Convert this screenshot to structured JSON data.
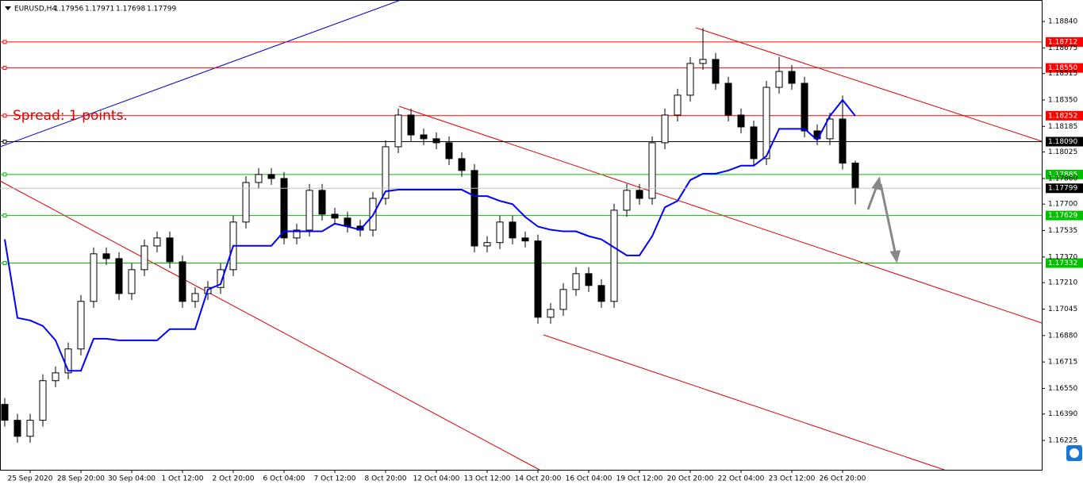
{
  "chart_data": {
    "type": "candlestick",
    "title": "EURUSD,H4",
    "annotation": "Spread: 1 points.",
    "categories": [
      null,
      null,
      "25 Sep 2020",
      null,
      null,
      null,
      "28 Sep 20:00",
      null,
      null,
      null,
      "30 Sep 04:00",
      null,
      null,
      null,
      "1 Oct 12:00",
      null,
      null,
      null,
      "2 Oct 20:00",
      null,
      null,
      null,
      "6 Oct 04:00",
      null,
      null,
      null,
      "7 Oct 12:00",
      null,
      null,
      null,
      "8 Oct 20:00",
      null,
      null,
      null,
      "12 Oct 04:00",
      null,
      null,
      null,
      "13 Oct 12:00",
      null,
      null,
      null,
      "14 Oct 20:00",
      null,
      null,
      null,
      "16 Oct 04:00",
      null,
      null,
      null,
      "19 Oct 12:00",
      null,
      null,
      null,
      "20 Oct 20:00",
      null,
      null,
      null,
      "22 Oct 04:00",
      null,
      null,
      null,
      "23 Oct 12:00",
      null,
      null,
      null,
      "26 Oct 20:00",
      null
    ],
    "open": [
      1.1645,
      1.16351,
      1.16251,
      1.16351,
      1.16598,
      1.16647,
      1.16796,
      1.17093,
      1.1739,
      1.1736,
      1.17142,
      1.17291,
      1.17439,
      1.17489,
      1.1734,
      1.17093,
      1.17142,
      1.1718,
      1.17291,
      1.17588,
      1.17835,
      1.17885,
      1.1786,
      1.17489,
      1.17538,
      1.17786,
      1.17637,
      1.17613,
      1.17563,
      1.17538,
      1.17736,
      1.18058,
      1.18256,
      1.18132,
      1.18108,
      1.18083,
      1.17984,
      1.1791,
      1.17439,
      1.1746,
      1.17588,
      1.17489,
      1.1747,
      1.16994,
      1.17043,
      1.17167,
      1.17266,
      1.17192,
      1.17093,
      1.17662,
      1.17786,
      1.17736,
      1.18083,
      1.18256,
      1.1838,
      1.18578,
      1.18603,
      1.18454,
      1.18256,
      1.18182,
      1.17984,
      1.18429,
      1.18528,
      1.18454,
      1.18157,
      1.18108,
      1.18231,
      1.17956
    ],
    "high": [
      1.1649,
      1.16391,
      1.16391,
      1.16638,
      1.16687,
      1.16836,
      1.17133,
      1.1743,
      1.1743,
      1.174,
      1.17331,
      1.17479,
      1.17529,
      1.17529,
      1.1738,
      1.17182,
      1.1722,
      1.17331,
      1.17628,
      1.17875,
      1.17925,
      1.17925,
      1.179,
      1.17578,
      1.17826,
      1.17826,
      1.17677,
      1.17653,
      1.17603,
      1.17776,
      1.18098,
      1.18296,
      1.18296,
      1.18172,
      1.18148,
      1.18123,
      1.18024,
      1.1795,
      1.175,
      1.17628,
      1.17628,
      1.17529,
      1.1751,
      1.17083,
      1.17207,
      1.17306,
      1.17306,
      1.17232,
      1.17702,
      1.17826,
      1.17826,
      1.18123,
      1.18296,
      1.1842,
      1.18618,
      1.188,
      1.18643,
      1.18494,
      1.18296,
      1.18222,
      1.18469,
      1.1862,
      1.18568,
      1.18494,
      1.18197,
      1.18271,
      1.18378,
      1.17971
    ],
    "low": [
      1.16311,
      1.16211,
      1.16211,
      1.16311,
      1.16558,
      1.16607,
      1.16756,
      1.17053,
      1.1732,
      1.17102,
      1.17102,
      1.17251,
      1.17399,
      1.173,
      1.17053,
      1.17053,
      1.17102,
      1.1714,
      1.17251,
      1.17548,
      1.17795,
      1.1782,
      1.17449,
      1.17449,
      1.17498,
      1.17597,
      1.17573,
      1.17523,
      1.17498,
      1.17498,
      1.17696,
      1.18018,
      1.18092,
      1.18068,
      1.18043,
      1.17944,
      1.1787,
      1.17399,
      1.17399,
      1.1742,
      1.17449,
      1.1743,
      1.16954,
      1.16954,
      1.17003,
      1.17127,
      1.17152,
      1.17053,
      1.17053,
      1.17622,
      1.17696,
      1.17696,
      1.18043,
      1.18216,
      1.1834,
      1.18538,
      1.18414,
      1.18216,
      1.18142,
      1.17944,
      1.17944,
      1.18389,
      1.18414,
      1.18117,
      1.18068,
      1.18068,
      1.17916,
      1.17698
    ],
    "close": [
      1.16351,
      1.16251,
      1.16351,
      1.16598,
      1.16647,
      1.16796,
      1.17093,
      1.1739,
      1.1736,
      1.17142,
      1.17291,
      1.17439,
      1.17489,
      1.1734,
      1.17093,
      1.17142,
      1.1718,
      1.17291,
      1.17588,
      1.17835,
      1.17885,
      1.1786,
      1.17489,
      1.17538,
      1.17786,
      1.17637,
      1.17613,
      1.17563,
      1.17538,
      1.17736,
      1.18058,
      1.18256,
      1.18132,
      1.18108,
      1.18083,
      1.17984,
      1.1791,
      1.17439,
      1.1746,
      1.17588,
      1.17489,
      1.1747,
      1.16994,
      1.17043,
      1.17167,
      1.17266,
      1.17192,
      1.17093,
      1.17662,
      1.17786,
      1.17736,
      1.18083,
      1.18256,
      1.1838,
      1.18578,
      1.18603,
      1.18454,
      1.18256,
      1.18182,
      1.17984,
      1.18429,
      1.18528,
      1.18454,
      1.18157,
      1.18108,
      1.18231,
      1.17956,
      1.17799
    ],
    "line": {
      "color": "#0000ff",
      "values": [
        1.1748,
        1.1699,
        1.16974,
        1.1694,
        1.1685,
        1.1666,
        1.1666,
        1.1686,
        1.1686,
        1.1685,
        1.1685,
        1.1685,
        1.1685,
        1.1692,
        1.1692,
        1.1692,
        1.17167,
        1.172,
        1.1744,
        1.1744,
        1.1744,
        1.1744,
        1.1753,
        1.1753,
        1.1753,
        1.1753,
        1.17578,
        1.1756,
        1.1754,
        1.1763,
        1.1778,
        1.1779,
        1.1779,
        1.1779,
        1.1779,
        1.1779,
        1.1779,
        1.1775,
        1.1775,
        1.1772,
        1.177,
        1.1762,
        1.1756,
        1.1754,
        1.1753,
        1.1753,
        1.175,
        1.1748,
        1.1743,
        1.1738,
        1.1738,
        1.175,
        1.1768,
        1.1772,
        1.1785,
        1.1789,
        1.1789,
        1.1791,
        1.1794,
        1.1794,
        1.18,
        1.1817,
        1.1817,
        1.1817,
        1.181,
        1.1825,
        1.1835,
        1.1825
      ]
    },
    "levels": [
      {
        "value": 1.18712,
        "color": "#ff0000"
      },
      {
        "value": 1.1855,
        "label": "1.18550",
        "color": "#ff0000"
      },
      {
        "value": 1.18252,
        "color": "#ff0000"
      },
      {
        "value": 1.1809,
        "label": "1.18090",
        "color": "#000000"
      },
      {
        "value": 1.17885,
        "color": "#00c000"
      },
      {
        "value": 1.17629,
        "color": "#00c000"
      },
      {
        "value": 1.17332,
        "color": "#00c000"
      }
    ],
    "ylim": [
      1.16042,
      1.18974
    ],
    "yticks": [
      {
        "value": 1.1884,
        "label": "1.18840"
      },
      1.18675,
      1.18515,
      {
        "value": 1.1835,
        "label": "1.18350"
      },
      1.18185,
      1.18025,
      {
        "value": 1.1786,
        "label": "1.17860"
      },
      {
        "value": 1.177,
        "label": "1.17700"
      },
      1.17535,
      {
        "value": 1.1737,
        "label": "1.17370"
      },
      {
        "value": 1.1721,
        "label": "1.17210"
      },
      1.17045,
      {
        "value": 1.1688,
        "label": "1.16880"
      },
      1.16715,
      {
        "value": 1.1655,
        "label": "1.16550"
      },
      {
        "value": 1.1639,
        "label": "1.16390"
      },
      1.16225
    ]
  }
}
